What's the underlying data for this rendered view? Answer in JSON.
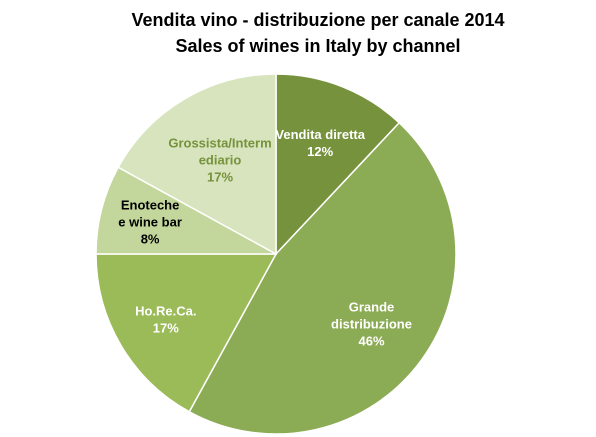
{
  "chart_data": {
    "type": "pie",
    "title": "Vendita vino - distribuzione per canale 2014",
    "subtitle": "Sales of wines in Italy by channel",
    "slices": [
      {
        "label_lines": [
          "Vendita diretta"
        ],
        "value_label": "12%",
        "value": 12,
        "color": "#76923c",
        "text_color": "#ffffff"
      },
      {
        "label_lines": [
          "Grande",
          "distribuzione"
        ],
        "value_label": "46%",
        "value": 46,
        "color": "#8cab55",
        "text_color": "#ffffff"
      },
      {
        "label_lines": [
          "Ho.Re.Ca."
        ],
        "value_label": "17%",
        "value": 17,
        "color": "#9bbb59",
        "text_color": "#ffffff"
      },
      {
        "label_lines": [
          "Enoteche",
          "e wine bar"
        ],
        "value_label": "8%",
        "value": 8,
        "color": "#c3d69b",
        "text_color": "#000000"
      },
      {
        "label_lines": [
          "Grossista/Interm",
          "ediario"
        ],
        "value_label": "17%",
        "value": 17,
        "color": "#d7e4bd",
        "text_color": "#76923c"
      }
    ]
  }
}
